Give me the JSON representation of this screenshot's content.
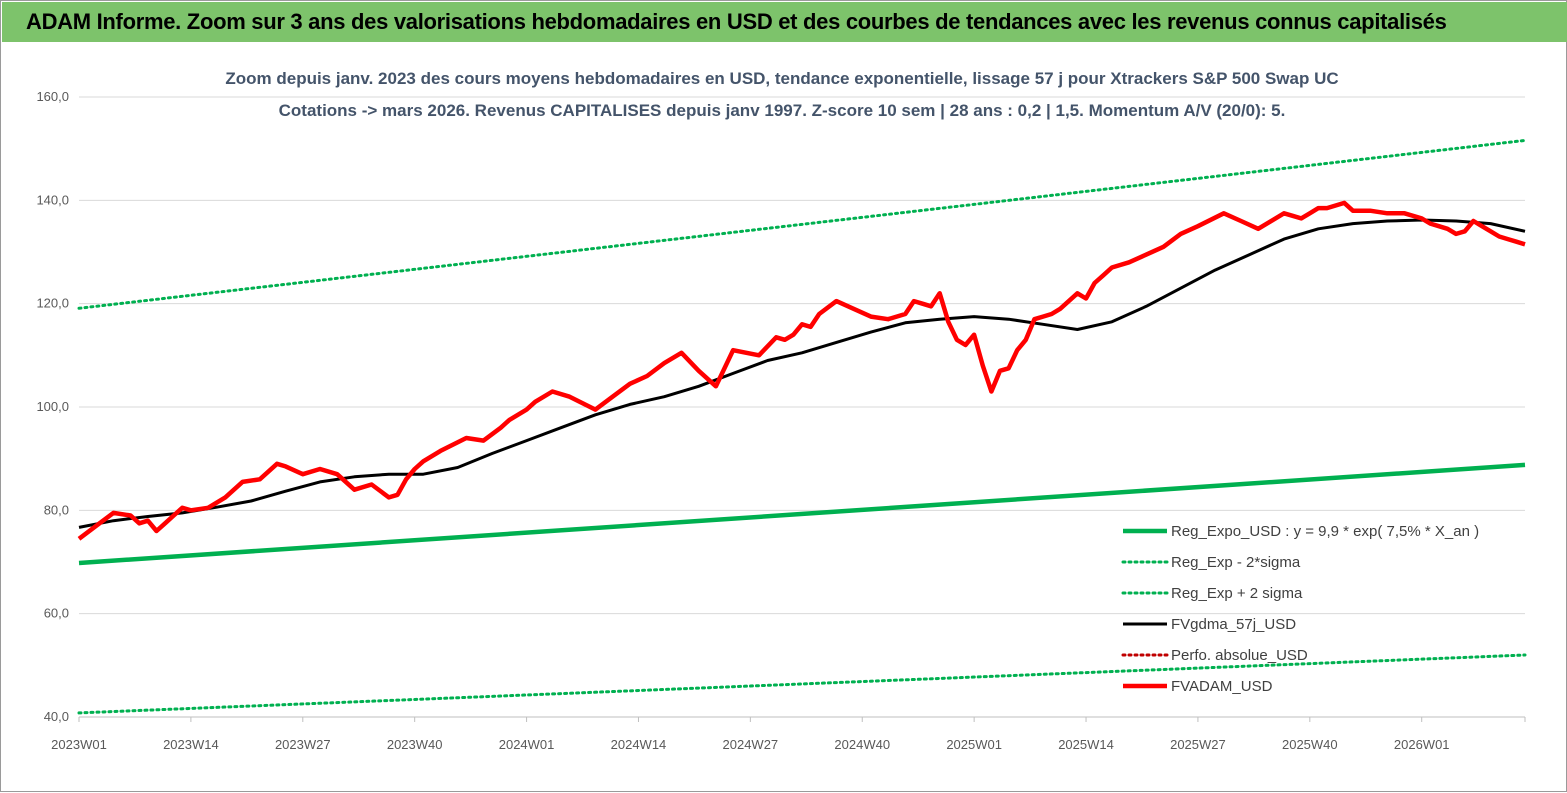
{
  "banner": {
    "title": "ADAM Informe. Zoom sur 3 ans des valorisations hebdomadaires en USD et des courbes de tendances avec les revenus connus capitalisés"
  },
  "colors": {
    "banner": "#7dc36b",
    "reg_expo": "#00b050",
    "fv_gdma": "#000000",
    "fv_adam": "#ff0000",
    "perfo": "#c00000"
  },
  "chart_data": {
    "type": "line",
    "title": "Zoom depuis janv. 2023 des cours moyens hebdomadaires en USD, tendance exponentielle, lissage 57 j pour Xtrackers S&P 500 Swap UC",
    "subtitle": "Cotations -> mars 2026. Revenus CAPITALISES depuis janv 1997. Z-score 10 sem | 28 ans : 0,2 | 1,5. Momentum A/V (20/0): 5.",
    "xlabel": "",
    "ylabel": "",
    "ylim": [
      40,
      160
    ],
    "yticks": [
      "40,0",
      "60,0",
      "80,0",
      "100,0",
      "120,0",
      "140,0",
      "160,0"
    ],
    "x_ticks": [
      "2023W01",
      "2023W14",
      "2023W27",
      "2023W40",
      "2024W01",
      "2024W14",
      "2024W27",
      "2024W40",
      "2025W01",
      "2025W14",
      "2025W27",
      "2025W40",
      "2026W01"
    ],
    "x_range_weeks": [
      0,
      168
    ],
    "grid": "horizontal",
    "legend_position": "bottom-right",
    "series": [
      {
        "name": "Reg_Expo_USD : y = 9,9 * exp( 7,5% *  X_an )",
        "style": "solid-thick",
        "color": "#00b050",
        "x": [
          0,
          168
        ],
        "y": [
          69.8,
          88.8
        ]
      },
      {
        "name": "Reg_Exp - 2*sigma",
        "style": "dotted",
        "color": "#00b050",
        "x": [
          0,
          168
        ],
        "y": [
          40.8,
          52.0
        ]
      },
      {
        "name": "Reg_Exp + 2 sigma",
        "style": "dotted",
        "color": "#00b050",
        "x": [
          0,
          168
        ],
        "y": [
          119.1,
          151.6
        ]
      },
      {
        "name": "FVgdma_57j_USD",
        "style": "solid",
        "color": "#000000",
        "x": [
          0,
          4,
          8,
          12,
          16,
          20,
          24,
          28,
          32,
          36,
          40,
          44,
          48,
          52,
          56,
          60,
          64,
          68,
          72,
          76,
          80,
          84,
          88,
          92,
          96,
          100,
          104,
          108,
          112,
          116,
          120,
          124,
          128,
          132,
          136,
          140,
          144,
          148,
          152,
          156,
          160,
          164,
          168
        ],
        "y": [
          76.7,
          78.0,
          78.8,
          79.5,
          80.6,
          81.8,
          83.7,
          85.5,
          86.5,
          87.0,
          87.0,
          88.3,
          91.0,
          93.5,
          96.0,
          98.5,
          100.5,
          102.0,
          104.0,
          106.5,
          109.0,
          110.5,
          112.5,
          114.5,
          116.3,
          117.0,
          117.5,
          117.0,
          116.0,
          115.0,
          116.5,
          119.5,
          123.0,
          126.5,
          129.5,
          132.5,
          134.5,
          135.5,
          136.0,
          136.2,
          136.0,
          135.5,
          134.0
        ]
      },
      {
        "name": "Perfo. absolue_USD",
        "style": "dotted",
        "color": "#c00000",
        "x": [],
        "y": []
      },
      {
        "name": "FVADAM_USD",
        "style": "solid-thick",
        "color": "#ff0000",
        "x": [
          0,
          2,
          4,
          6,
          7,
          8,
          9,
          10,
          11,
          12,
          13,
          15,
          17,
          19,
          21,
          23,
          24,
          26,
          28,
          30,
          32,
          34,
          36,
          37,
          38,
          39,
          40,
          42,
          45,
          47,
          49,
          50,
          52,
          53,
          55,
          57,
          60,
          62,
          64,
          66,
          68,
          70,
          72,
          74,
          76,
          79,
          81,
          82,
          83,
          84,
          85,
          86,
          88,
          90,
          92,
          94,
          96,
          97,
          98,
          99,
          100,
          101,
          102,
          103,
          104,
          105,
          106,
          107,
          108,
          109,
          110,
          111,
          112,
          113,
          114,
          115,
          116,
          117,
          118,
          119,
          120,
          122,
          124,
          126,
          128,
          130,
          133,
          135,
          137,
          140,
          141,
          142,
          143,
          144,
          145,
          147,
          148,
          150,
          152,
          154,
          156,
          157,
          158,
          159,
          160,
          161,
          162,
          163,
          164,
          165,
          166,
          167,
          168
        ],
        "y": [
          74.5,
          77.0,
          79.5,
          79.0,
          77.5,
          78.0,
          76.0,
          77.5,
          79.0,
          80.5,
          80.0,
          80.5,
          82.5,
          85.5,
          86.0,
          89.0,
          88.5,
          87.0,
          88.0,
          87.0,
          84.0,
          85.0,
          82.5,
          83.0,
          86.0,
          88.0,
          89.5,
          91.5,
          94.0,
          93.5,
          96.0,
          97.5,
          99.5,
          101.0,
          103.0,
          102.0,
          99.5,
          102.0,
          104.5,
          106.0,
          108.5,
          110.5,
          107.0,
          104.0,
          111.0,
          110.0,
          113.5,
          113.0,
          114.0,
          116.0,
          115.5,
          118.0,
          120.5,
          119.0,
          117.5,
          117.0,
          118.0,
          120.5,
          120.0,
          119.5,
          122.0,
          116.5,
          113.0,
          112.0,
          114.0,
          108.0,
          103.0,
          107.0,
          107.5,
          111.0,
          113.0,
          117.0,
          117.5,
          118.0,
          119.0,
          120.5,
          122.0,
          121.0,
          124.0,
          125.5,
          127.0,
          128.0,
          129.5,
          131.0,
          133.5,
          135.0,
          137.5,
          136.0,
          134.5,
          137.5,
          137.0,
          136.5,
          137.5,
          138.5,
          138.5,
          139.5,
          138.0,
          138.0,
          137.5,
          137.5,
          136.5,
          135.5,
          135.0,
          134.5,
          133.5,
          134.0,
          136.0,
          135.0,
          134.0,
          133.0,
          132.5,
          132.0,
          131.5
        ]
      }
    ]
  }
}
